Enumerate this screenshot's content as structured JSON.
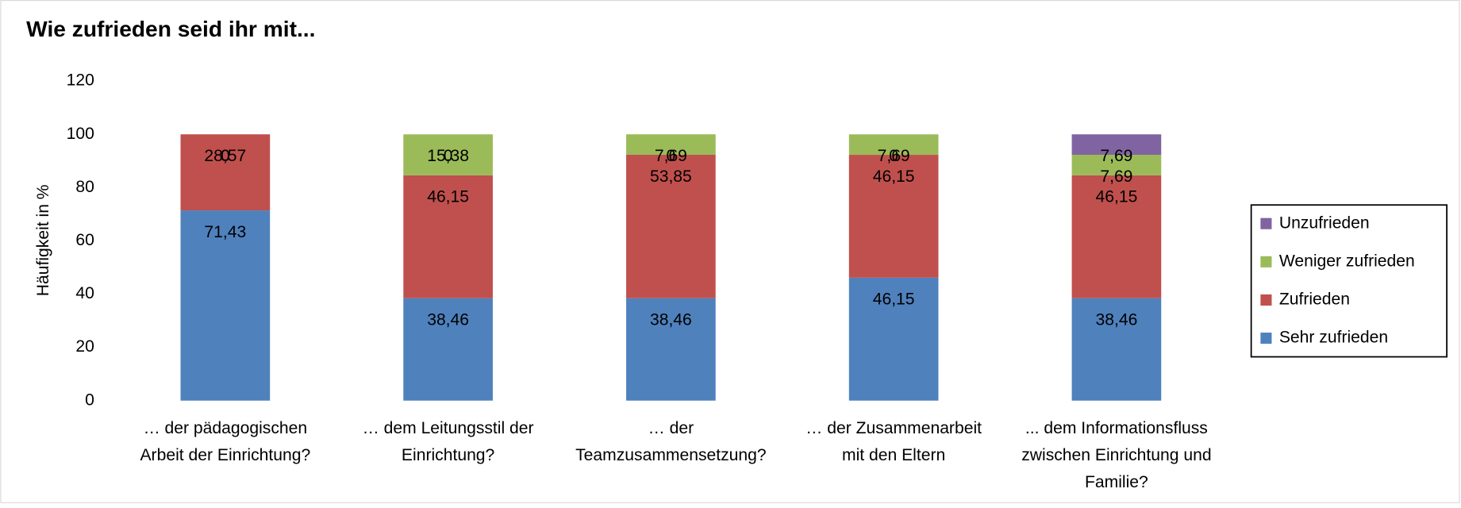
{
  "chart_data": {
    "type": "stacked_bar",
    "title": "Wie zufrieden seid ihr mit...",
    "y_label": "Häufigkeit in %",
    "categories": [
      "… der pädagogischen\nArbeit der Einrichtung?",
      "… dem Leitungsstil der\nEinrichtung?",
      "… der\nTeamzusammensetzung?",
      "… der Zusammenarbeit\nmit den Eltern",
      "... dem Informationsfluss\nzwischen Einrichtung und\nFamilie?"
    ],
    "series": [
      {
        "name": "Sehr zufrieden",
        "color": "#4f81bd",
        "values": [
          71.43,
          38.46,
          38.46,
          46.15,
          38.46
        ],
        "value_labels": [
          "71,43",
          "38,46",
          "38,46",
          "46,15",
          "38,46"
        ]
      },
      {
        "name": "Zufrieden",
        "color": "#c0504d",
        "values": [
          28.57,
          46.15,
          53.85,
          46.15,
          46.15
        ],
        "value_labels": [
          "28,57",
          "46,15",
          "53,85",
          "46,15",
          "46,15"
        ]
      },
      {
        "name": "Weniger zufrieden",
        "color": "#9bbb59",
        "values": [
          0,
          15.38,
          7.69,
          7.69,
          7.69
        ],
        "value_labels": [
          "0",
          "15,38",
          "7,69",
          "7,69",
          "7,69"
        ]
      },
      {
        "name": "Unzufrieden",
        "color": "#8064a2",
        "values": [
          0,
          0,
          0,
          0,
          7.69
        ],
        "value_labels": [
          "0",
          "0",
          "0",
          "0",
          "7,69"
        ]
      }
    ],
    "ylim": [
      0,
      120
    ],
    "yticks": [
      0,
      20,
      40,
      60,
      80,
      100,
      120
    ],
    "grid": false,
    "legend": "right"
  }
}
